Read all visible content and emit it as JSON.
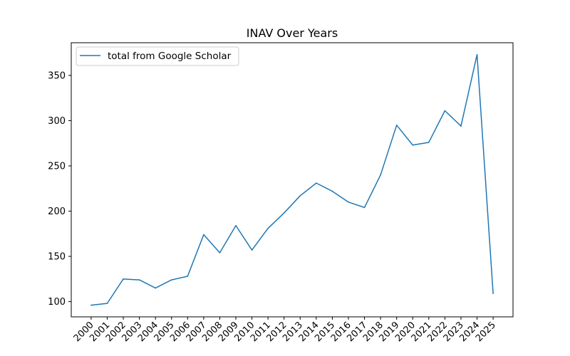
{
  "chart_data": {
    "type": "line",
    "title": "INAV Over Years",
    "xlabel": "",
    "ylabel": "",
    "categories": [
      "2000",
      "2001",
      "2002",
      "2003",
      "2004",
      "2005",
      "2006",
      "2007",
      "2008",
      "2009",
      "2010",
      "2011",
      "2012",
      "2013",
      "2014",
      "2015",
      "2016",
      "2017",
      "2018",
      "2019",
      "2020",
      "2021",
      "2022",
      "2023",
      "2024",
      "2025"
    ],
    "series": [
      {
        "name": "total from Google Scholar",
        "color": "#1f77b4",
        "values": [
          96,
          98,
          125,
          124,
          115,
          124,
          128,
          174,
          154,
          184,
          157,
          181,
          198,
          217,
          231,
          222,
          210,
          204,
          240,
          295,
          273,
          276,
          311,
          294,
          373,
          109
        ]
      }
    ],
    "yticks": [
      100,
      150,
      200,
      250,
      300,
      350
    ],
    "ylim": [
      83.15,
      386.15
    ],
    "grid": false,
    "legend_position": "upper-left"
  }
}
